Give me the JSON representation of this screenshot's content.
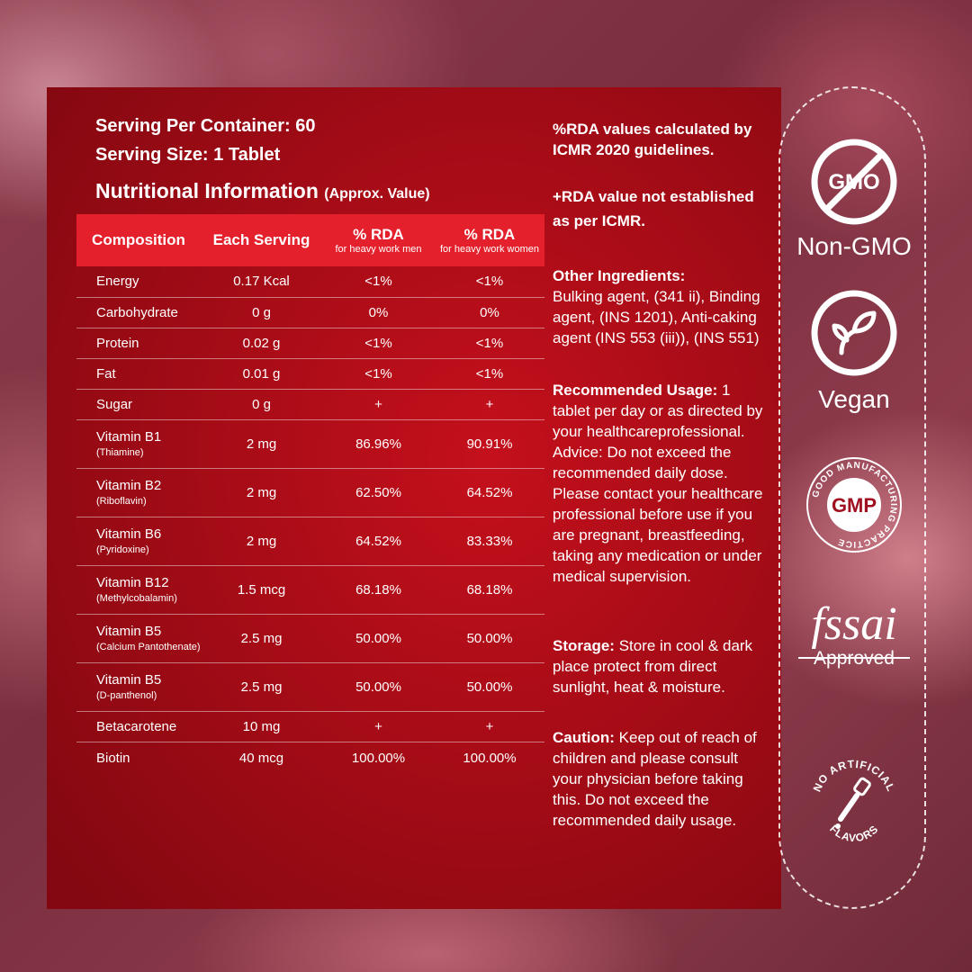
{
  "serving": {
    "per_container": "Serving Per Container: 60",
    "size": "Serving Size: 1 Tablet"
  },
  "nutrition": {
    "title": "Nutritional Information",
    "approx": "(Approx. Value)",
    "headers": {
      "composition": "Composition",
      "each_serving": "Each Serving",
      "rda_men": "% RDA",
      "rda_men_sub": "for heavy work men",
      "rda_women": "% RDA",
      "rda_women_sub": "for heavy work women"
    },
    "rows": [
      {
        "name": "Energy",
        "sub": "",
        "serving": "0.17 Kcal",
        "men": "<1%",
        "women": "<1%"
      },
      {
        "name": "Carbohydrate",
        "sub": "",
        "serving": "0 g",
        "men": "0%",
        "women": "0%"
      },
      {
        "name": "Protein",
        "sub": "",
        "serving": "0.02 g",
        "men": "<1%",
        "women": "<1%"
      },
      {
        "name": "Fat",
        "sub": "",
        "serving": "0.01 g",
        "men": "<1%",
        "women": "<1%"
      },
      {
        "name": "Sugar",
        "sub": "",
        "serving": "0 g",
        "men": "+",
        "women": "+"
      },
      {
        "name": "Vitamin B1",
        "sub": "(Thiamine)",
        "serving": "2 mg",
        "men": "86.96%",
        "women": "90.91%"
      },
      {
        "name": "Vitamin B2",
        "sub": "(Riboflavin)",
        "serving": "2 mg",
        "men": "62.50%",
        "women": "64.52%"
      },
      {
        "name": "Vitamin B6",
        "sub": "(Pyridoxine)",
        "serving": "2 mg",
        "men": "64.52%",
        "women": "83.33%"
      },
      {
        "name": "Vitamin B12",
        "sub": "(Methylcobalamin)",
        "serving": "1.5 mcg",
        "men": "68.18%",
        "women": "68.18%"
      },
      {
        "name": "Vitamin B5",
        "sub": "(Calcium Pantothenate)",
        "serving": "2.5 mg",
        "men": "50.00%",
        "women": "50.00%"
      },
      {
        "name": "Vitamin B5",
        "sub": "(D-panthenol)",
        "serving": "2.5 mg",
        "men": "50.00%",
        "women": "50.00%"
      },
      {
        "name": "Betacarotene",
        "sub": "",
        "serving": "10 mg",
        "men": "+",
        "women": "+"
      },
      {
        "name": "Biotin",
        "sub": "",
        "serving": "40 mcg",
        "men": "100.00%",
        "women": "100.00%"
      }
    ]
  },
  "notes": {
    "rda_calc": "%RDA values calculated by ICMR 2020 guidelines.",
    "rda_plus": "+RDA value not established as per ICMR.",
    "other_heading": "Other Ingredients:",
    "other_text": "Bulking agent, (341 ii), Binding agent, (INS 1201), Anti-caking agent (INS 553 (iii)), (INS 551)",
    "usage_heading": "Recommended Usage:",
    "usage_text": "1 tablet per day or as directed by your healthcareprofessional. Advice: Do not exceed the recommended daily dose. Please contact your healthcare professional before use if you are pregnant, breastfeeding, taking any medication or under medical supervision.",
    "storage_heading": "Storage:",
    "storage_text": "Store in cool & dark place protect from direct sunlight, heat & moisture.",
    "caution_heading": "Caution:",
    "caution_text": "Keep out of reach of children and please consult your physician before taking this. Do not exceed the recommended daily usage."
  },
  "badges": {
    "gmo_icon_text": "GMO",
    "gmo_label": "Non-GMO",
    "vegan_label": "Vegan",
    "gmp_text": "GMP",
    "gmp_ring": "GOOD MANUFACTURING PRACTICE",
    "fssai_text": "fssai",
    "fssai_label": "Approved",
    "artificial_top": "NO ARTIFICIAL",
    "artificial_bottom": "FLAVORS"
  }
}
